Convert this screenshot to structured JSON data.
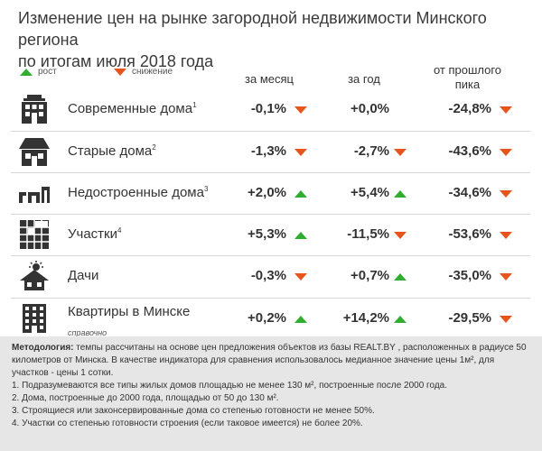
{
  "title_line1": "Изменение цен на рынке загородной недвижимости Минского региона",
  "title_line2": "по итогам июля 2018 года",
  "legend": {
    "up_label": "рост",
    "down_label": "снижение",
    "up_color": "#2fae2f",
    "down_color": "#e8551c"
  },
  "columns": {
    "month": "за месяц",
    "year": "за год",
    "peak_line1": "от прошлого",
    "peak_line2": "пика"
  },
  "rows": [
    {
      "icon": "modern-house-icon",
      "name": "Современные дома",
      "note": "1",
      "sub": "",
      "month": "-0,1%",
      "month_dir": "down",
      "year": "+0,0%",
      "year_dir": "none",
      "peak": "-24,8%",
      "peak_dir": "down"
    },
    {
      "icon": "old-house-icon",
      "name": "Старые дома",
      "note": "2",
      "sub": "",
      "month": "-1,3%",
      "month_dir": "down",
      "year": "-2,7%",
      "year_dir": "down",
      "peak": "-43,6%",
      "peak_dir": "down"
    },
    {
      "icon": "unfinished-house-icon",
      "name": "Недостроенные дома",
      "note": "3",
      "sub": "",
      "month": "+2,0%",
      "month_dir": "up",
      "year": "+5,4%",
      "year_dir": "up",
      "peak": "-34,6%",
      "peak_dir": "down"
    },
    {
      "icon": "land-plot-icon",
      "name": "Участки",
      "note": "4",
      "sub": "",
      "month": "+5,3%",
      "month_dir": "up",
      "year": "-11,5%",
      "year_dir": "down",
      "peak": "-53,6%",
      "peak_dir": "down"
    },
    {
      "icon": "dacha-icon",
      "name": "Дачи",
      "note": "",
      "sub": "",
      "month": "-0,3%",
      "month_dir": "down",
      "year": "+0,7%",
      "year_dir": "up",
      "peak": "-35,0%",
      "peak_dir": "down"
    },
    {
      "icon": "apartment-building-icon",
      "name": "Квартиры в Минске",
      "note": "",
      "sub": "справочно",
      "month": "+0,2%",
      "month_dir": "up",
      "year": "+14,2%",
      "year_dir": "up",
      "peak": "-29,5%",
      "peak_dir": "down"
    }
  ],
  "footer": {
    "method_label": "Методология:",
    "method_text": " темпы рассчитаны на основе цен предложения объектов из базы REALT.BY , расположенных в радиусе 50 километров от Минска. В качестве индикатора для сравнения использовалось медианное значение цены 1м², для участков  - цены 1 сотки.",
    "note1": "1. Подразумеваются все типы жилых домов площадью не менее 130 м², построенные после 2000 года.",
    "note2": "2. Дома, построенные до 2000 года, площадью от 50 до 130 м².",
    "note3": "3. Строящиеся или законсервированные дома со степенью готовности не менее 50%.",
    "note4": "4. Участки со степенью готовности строения (если таковое имеется) не более 20%."
  }
}
